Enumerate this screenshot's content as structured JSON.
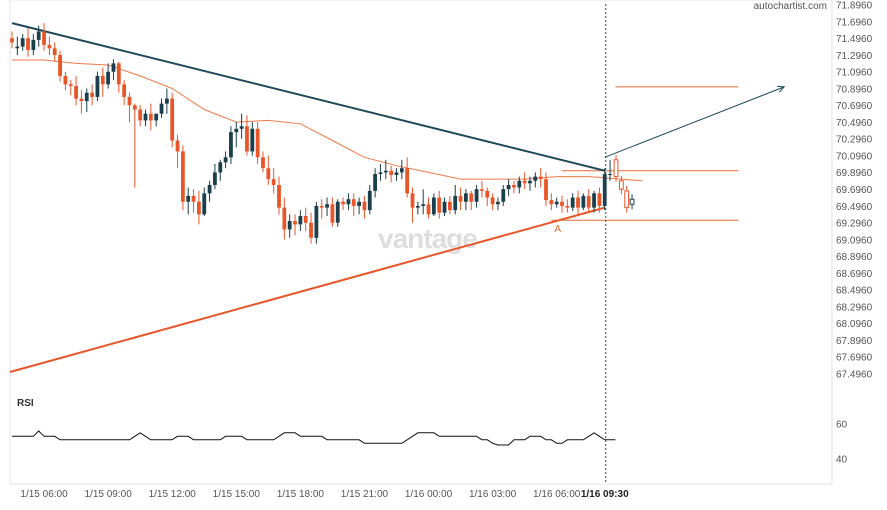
{
  "brand": "autochartist.com",
  "watermark": "vantage",
  "chart_data": {
    "type": "candlestick",
    "pattern": "triangle",
    "y_ticks": [
      "71.8960",
      "71.6960",
      "71.4960",
      "71.2960",
      "71.0960",
      "70.8960",
      "70.6960",
      "70.4960",
      "70.2960",
      "70.0960",
      "69.8960",
      "69.6960",
      "69.4960",
      "69.2960",
      "69.0960",
      "68.8960",
      "68.6960",
      "68.4960",
      "68.2960",
      "68.0960",
      "67.8960",
      "67.6960",
      "67.4960"
    ],
    "ylim": [
      67.3,
      71.9
    ],
    "x_ticks": [
      "1/15 06:00",
      "1/15 09:00",
      "1/15 12:00",
      "1/15 15:00",
      "1/15 18:00",
      "1/15 21:00",
      "1/16 00:00",
      "1/16 03:00",
      "1/16 06:00",
      "1/16 09:30"
    ],
    "x_tick_index": [
      6,
      18,
      30,
      42,
      54,
      66,
      78,
      90,
      102,
      111
    ],
    "breakout_label": "1/16 09:30",
    "breakout_index": 111,
    "point_label": "A",
    "point_index": 102,
    "candles": [
      [
        71.5,
        71.58,
        71.45,
        71.38
      ],
      [
        71.38,
        71.52,
        71.4,
        71.3
      ],
      [
        71.4,
        71.55,
        71.5,
        71.35
      ],
      [
        71.5,
        71.62,
        71.36,
        71.28
      ],
      [
        71.36,
        71.55,
        71.48,
        71.3
      ],
      [
        71.48,
        71.65,
        71.58,
        71.4
      ],
      [
        71.58,
        71.68,
        71.42,
        71.35
      ],
      [
        71.42,
        71.52,
        71.38,
        71.3
      ],
      [
        71.38,
        71.45,
        71.3,
        71.22
      ],
      [
        71.3,
        71.35,
        71.05,
        70.98
      ],
      [
        71.05,
        71.1,
        70.95,
        70.88
      ],
      [
        70.95,
        71.0,
        70.93,
        70.82
      ],
      [
        70.93,
        71.05,
        70.78,
        70.7
      ],
      [
        70.78,
        70.88,
        70.75,
        70.6
      ],
      [
        70.75,
        70.9,
        70.85,
        70.62
      ],
      [
        70.85,
        70.95,
        70.8,
        70.7
      ],
      [
        70.8,
        71.1,
        71.05,
        70.75
      ],
      [
        71.05,
        71.15,
        70.95,
        70.8
      ],
      [
        70.95,
        71.2,
        71.1,
        70.9
      ],
      [
        71.1,
        71.25,
        71.2,
        71.0
      ],
      [
        71.2,
        71.22,
        70.95,
        70.85
      ],
      [
        70.95,
        71.0,
        70.8,
        70.7
      ],
      [
        70.8,
        70.85,
        70.7,
        70.5
      ],
      [
        70.7,
        70.72,
        70.65,
        69.72
      ],
      [
        70.65,
        70.7,
        70.52,
        70.45
      ],
      [
        70.52,
        70.65,
        70.6,
        70.45
      ],
      [
        70.6,
        70.72,
        70.52,
        70.4
      ],
      [
        70.52,
        70.58,
        70.6,
        70.45
      ],
      [
        70.6,
        70.78,
        70.72,
        70.55
      ],
      [
        70.72,
        70.9,
        70.78,
        70.6
      ],
      [
        70.78,
        70.85,
        70.28,
        70.2
      ],
      [
        70.28,
        70.35,
        70.15,
        69.95
      ],
      [
        70.15,
        70.22,
        69.55,
        69.45
      ],
      [
        69.55,
        69.72,
        69.62,
        69.4
      ],
      [
        69.62,
        69.7,
        69.55,
        69.42
      ],
      [
        69.55,
        69.68,
        69.4,
        69.28
      ],
      [
        69.4,
        69.72,
        69.65,
        69.38
      ],
      [
        69.65,
        69.8,
        69.75,
        69.55
      ],
      [
        69.75,
        70.0,
        69.9,
        69.7
      ],
      [
        69.9,
        70.05,
        70.02,
        69.8
      ],
      [
        70.02,
        70.15,
        70.08,
        69.95
      ],
      [
        70.08,
        70.45,
        70.38,
        70.0
      ],
      [
        70.38,
        70.5,
        70.42,
        70.2
      ],
      [
        70.42,
        70.6,
        70.45,
        70.3
      ],
      [
        70.45,
        70.58,
        70.15,
        70.1
      ],
      [
        70.15,
        70.5,
        70.42,
        70.1
      ],
      [
        70.42,
        70.5,
        70.08,
        70.0
      ],
      [
        70.08,
        70.15,
        69.95,
        69.9
      ],
      [
        69.95,
        70.1,
        69.82,
        69.75
      ],
      [
        69.82,
        69.95,
        69.75,
        69.65
      ],
      [
        69.75,
        69.85,
        69.48,
        69.4
      ],
      [
        69.48,
        69.6,
        69.22,
        69.1
      ],
      [
        69.22,
        69.4,
        69.32,
        69.12
      ],
      [
        69.32,
        69.4,
        69.28,
        69.15
      ],
      [
        69.28,
        69.45,
        69.38,
        69.2
      ],
      [
        69.38,
        69.48,
        69.3,
        69.2
      ],
      [
        69.3,
        69.42,
        69.12,
        69.05
      ],
      [
        69.12,
        69.55,
        69.5,
        69.05
      ],
      [
        69.5,
        69.58,
        69.48,
        69.35
      ],
      [
        69.48,
        69.6,
        69.52,
        69.38
      ],
      [
        69.52,
        69.6,
        69.3,
        69.25
      ],
      [
        69.3,
        69.58,
        69.55,
        69.25
      ],
      [
        69.55,
        69.6,
        69.52,
        69.45
      ],
      [
        69.52,
        69.65,
        69.58,
        69.45
      ],
      [
        69.58,
        69.65,
        69.5,
        69.38
      ],
      [
        69.5,
        69.6,
        69.55,
        69.4
      ],
      [
        69.55,
        69.62,
        69.45,
        69.35
      ],
      [
        69.45,
        69.75,
        69.68,
        69.4
      ],
      [
        69.68,
        69.95,
        69.88,
        69.6
      ],
      [
        69.88,
        70.0,
        69.9,
        69.8
      ],
      [
        69.9,
        70.05,
        69.92,
        69.82
      ],
      [
        69.92,
        69.98,
        69.87,
        69.78
      ],
      [
        69.87,
        69.95,
        69.9,
        69.8
      ],
      [
        69.9,
        70.05,
        69.95,
        69.82
      ],
      [
        69.95,
        70.08,
        69.65,
        69.6
      ],
      [
        69.65,
        69.72,
        69.48,
        69.3
      ],
      [
        69.48,
        69.55,
        69.5,
        69.4
      ],
      [
        69.5,
        69.7,
        69.52,
        69.4
      ],
      [
        69.52,
        69.6,
        69.4,
        69.35
      ],
      [
        69.4,
        69.65,
        69.6,
        69.38
      ],
      [
        69.6,
        69.68,
        69.42,
        69.35
      ],
      [
        69.42,
        69.6,
        69.55,
        69.38
      ],
      [
        69.55,
        69.62,
        69.45,
        69.4
      ],
      [
        69.45,
        69.75,
        69.62,
        69.4
      ],
      [
        69.62,
        69.72,
        69.55,
        69.45
      ],
      [
        69.55,
        69.7,
        69.65,
        69.45
      ],
      [
        69.65,
        69.68,
        69.55,
        69.45
      ],
      [
        69.55,
        69.75,
        69.7,
        69.48
      ],
      [
        69.7,
        69.8,
        69.68,
        69.6
      ],
      [
        69.68,
        69.72,
        69.6,
        69.5
      ],
      [
        69.6,
        69.65,
        69.52,
        69.45
      ],
      [
        69.52,
        69.6,
        69.55,
        69.45
      ],
      [
        69.55,
        69.75,
        69.7,
        69.5
      ],
      [
        69.7,
        69.82,
        69.75,
        69.62
      ],
      [
        69.75,
        69.8,
        69.72,
        69.65
      ],
      [
        69.72,
        69.85,
        69.8,
        69.65
      ],
      [
        69.8,
        69.9,
        69.77,
        69.7
      ],
      [
        69.77,
        69.85,
        69.8,
        69.68
      ],
      [
        69.8,
        69.9,
        69.85,
        69.72
      ],
      [
        69.85,
        69.95,
        69.82,
        69.72
      ],
      [
        69.82,
        69.9,
        69.57,
        69.5
      ],
      [
        69.57,
        69.65,
        69.52,
        69.45
      ],
      [
        69.52,
        69.6,
        69.55,
        69.48
      ],
      [
        69.55,
        69.62,
        69.5,
        69.42
      ],
      [
        69.5,
        69.58,
        69.48,
        69.42
      ],
      [
        69.48,
        69.65,
        69.6,
        69.44
      ],
      [
        69.6,
        69.68,
        69.48,
        69.4
      ],
      [
        69.48,
        69.65,
        69.62,
        69.45
      ],
      [
        69.62,
        69.7,
        69.48,
        69.42
      ],
      [
        69.48,
        69.68,
        69.65,
        69.42
      ],
      [
        69.65,
        69.72,
        69.5,
        69.42
      ],
      [
        69.5,
        69.95,
        69.88,
        69.45
      ],
      [
        69.88,
        70.05,
        69.88,
        69.8
      ]
    ],
    "ghost_candles": [
      [
        70.05,
        69.85
      ],
      [
        69.8,
        69.7
      ],
      [
        69.68,
        69.48
      ],
      [
        69.52,
        69.58
      ]
    ],
    "moving_average": [
      [
        0,
        71.24
      ],
      [
        6,
        71.24
      ],
      [
        12,
        71.2
      ],
      [
        18,
        71.18
      ],
      [
        24,
        71.05
      ],
      [
        30,
        70.9
      ],
      [
        36,
        70.65
      ],
      [
        42,
        70.5
      ],
      [
        48,
        70.52
      ],
      [
        54,
        70.48
      ],
      [
        60,
        70.28
      ],
      [
        66,
        70.08
      ],
      [
        72,
        69.98
      ],
      [
        78,
        69.9
      ],
      [
        84,
        69.82
      ],
      [
        90,
        69.82
      ],
      [
        96,
        69.82
      ],
      [
        102,
        69.85
      ],
      [
        108,
        69.85
      ],
      [
        114,
        69.82
      ],
      [
        118,
        69.8
      ]
    ],
    "resistance_line": [
      [
        0,
        71.68
      ],
      [
        111,
        69.92
      ]
    ],
    "support_line": [
      [
        0,
        67.52
      ],
      [
        111,
        69.48
      ]
    ],
    "forecast_arrow": [
      [
        111,
        70.08
      ],
      [
        124,
        70.92
      ]
    ],
    "target_level": 70.92,
    "breakout_level": 69.92,
    "target_index_range": [
      113,
      136
    ],
    "breakout_index_range": [
      103,
      136
    ],
    "lower_level": 69.33,
    "lower_index_range": [
      101,
      136
    ],
    "rsi": {
      "label": "RSI",
      "y_ticks": [
        "60",
        "40"
      ],
      "ylim": [
        30,
        70
      ],
      "values": [
        53,
        53,
        53,
        53,
        53,
        56,
        53,
        53,
        53,
        51,
        51,
        51,
        51,
        51,
        51,
        51,
        51,
        51,
        51,
        51,
        51,
        51,
        51,
        53,
        55,
        53,
        51,
        51,
        51,
        51,
        51,
        53,
        53,
        53,
        51,
        51,
        51,
        51,
        51,
        51,
        53,
        53,
        53,
        53,
        51,
        51,
        51,
        51,
        51,
        51,
        53,
        55,
        55,
        55,
        53,
        53,
        53,
        53,
        53,
        51,
        51,
        51,
        51,
        51,
        51,
        51,
        49,
        49,
        49,
        49,
        49,
        49,
        49,
        49,
        51,
        53,
        55,
        55,
        55,
        55,
        53,
        53,
        53,
        53,
        53,
        53,
        53,
        53,
        51,
        51,
        49,
        48,
        48,
        48,
        51,
        51,
        51,
        53,
        53,
        53,
        51,
        51,
        49,
        49,
        51,
        51,
        51,
        51,
        53,
        55,
        53,
        51,
        51,
        51
      ]
    }
  }
}
